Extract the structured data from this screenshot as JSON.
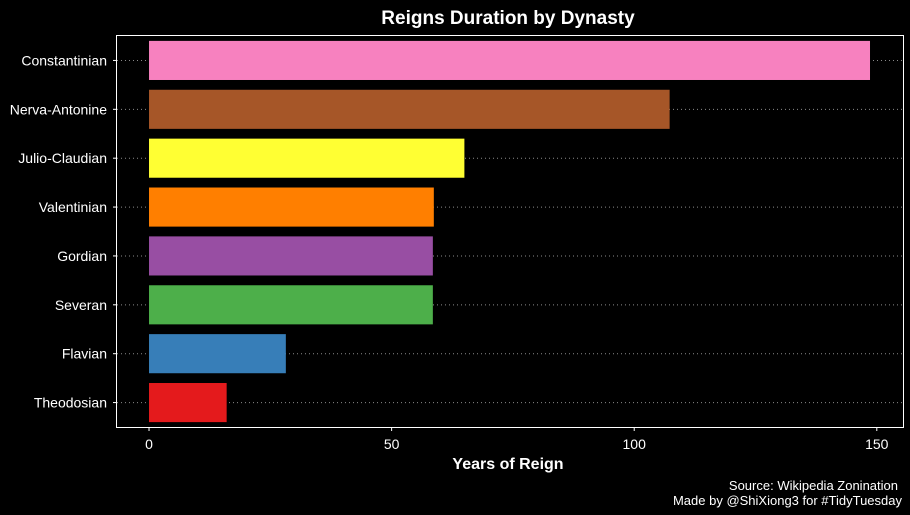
{
  "chart_data": {
    "type": "bar",
    "orientation": "horizontal",
    "title": "Reigns Duration by Dynasty",
    "xlabel": "Years of Reign",
    "ylabel": "",
    "xlim": [
      -6.6,
      155.4
    ],
    "x_ticks": [
      0,
      50,
      100,
      150
    ],
    "grid": "y-major dotted",
    "legend": "none",
    "background": "#000000",
    "categories": [
      "Constantinian",
      "Nerva-Antonine",
      "Julio-Claudian",
      "Valentinian",
      "Gordian",
      "Severan",
      "Flavian",
      "Theodosian"
    ],
    "values": [
      148.6,
      107.3,
      65.0,
      58.7,
      58.5,
      58.5,
      28.2,
      16.0
    ],
    "colors": [
      "#F781BF",
      "#A65628",
      "#FFFF33",
      "#FF7F00",
      "#984EA3",
      "#4DAF4A",
      "#377EB8",
      "#E41A1C"
    ]
  },
  "caption": {
    "source": "Source: Wikipedia Zonination",
    "credit": "Made by @ShiXiong3 for #TidyTuesday"
  }
}
